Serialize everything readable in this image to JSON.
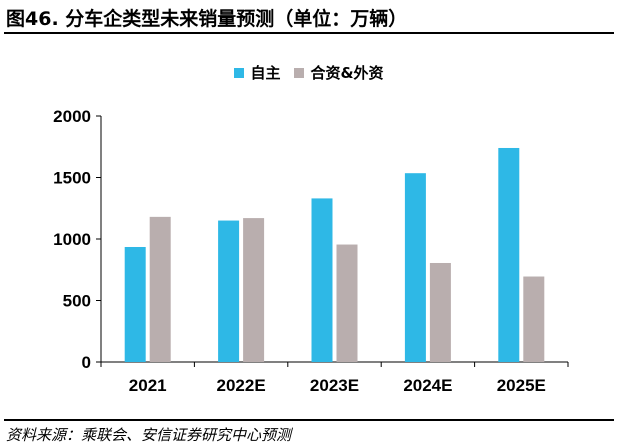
{
  "title": "图46. 分车企类型未来销量预测（单位：万辆）",
  "source": "资料来源：乘联会、安信证券研究中心预测",
  "chart_data": {
    "type": "bar",
    "categories": [
      "2021",
      "2022E",
      "2023E",
      "2024E",
      "2025E"
    ],
    "series": [
      {
        "name": "自主",
        "color": "#2eb8e6",
        "values": [
          935,
          1150,
          1330,
          1535,
          1740
        ]
      },
      {
        "name": "合资&外资",
        "color": "#b9aeae",
        "values": [
          1180,
          1170,
          955,
          805,
          695
        ]
      }
    ],
    "ylim": [
      0,
      2000
    ],
    "yticks": [
      0,
      500,
      1000,
      1500,
      2000
    ],
    "legend_position": "top-center"
  }
}
